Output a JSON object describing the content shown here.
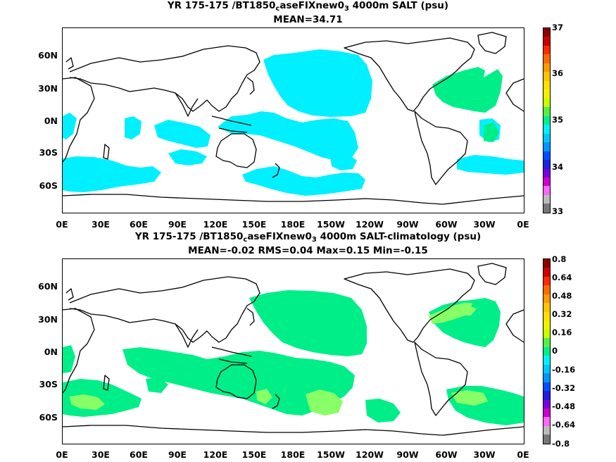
{
  "panels": [
    {
      "id": "absolute",
      "title_main": "YR 175-175 /BT1850",
      "title_sub": "c",
      "title_mid": "aseFIXnew0",
      "title_sub2": "3",
      "title_end": " 4000m SALT (psu)",
      "stats": "MEAN=34.71",
      "colorbar": {
        "labels": [
          "37",
          "36",
          "35",
          "34",
          "33"
        ],
        "colors": [
          "#8b0000",
          "#cc0000",
          "#ff2a00",
          "#ff6a00",
          "#ff9a00",
          "#ffc400",
          "#ffe000",
          "#f0f000",
          "#c8ff00",
          "#55ee44",
          "#00ee88",
          "#00f0ff",
          "#00c8ff",
          "#0096ff",
          "#0050ff",
          "#2020dd",
          "#7a00dd",
          "#cc00cc",
          "#ff66ff",
          "#bbbbbb",
          "#777777"
        ]
      },
      "lat_labels": [
        "60N",
        "30N",
        "0N",
        "30S",
        "60S"
      ],
      "lon_labels": [
        "0E",
        "30E",
        "60E",
        "90E",
        "120E",
        "150E",
        "180E",
        "150W",
        "120W",
        "90W",
        "60W",
        "30W",
        "0E"
      ]
    },
    {
      "id": "anomaly",
      "title_main": "YR 175-175 /BT1850",
      "title_sub": "c",
      "title_mid": "aseFIXnew0",
      "title_sub2": "3",
      "title_end": " 4000m SALT-climatology (psu)",
      "stats": "MEAN=-0.02   RMS=0.04   Max=0.15   Min=-0.15",
      "colorbar": {
        "labels": [
          "0.8",
          "0.64",
          "0.48",
          "0.32",
          "0.16",
          "0",
          "-0.16",
          "-0.32",
          "-0.48",
          "-0.64",
          "-0.8"
        ],
        "colors": [
          "#8b0000",
          "#cc0000",
          "#ff2a00",
          "#ff6a00",
          "#ff9a00",
          "#ffc400",
          "#ffe000",
          "#f0f000",
          "#c8ff00",
          "#55ee44",
          "#00ee88",
          "#00f0ff",
          "#00c8ff",
          "#0096ff",
          "#0050ff",
          "#2020dd",
          "#7a00dd",
          "#cc00cc",
          "#ff66ff",
          "#bbbbbb",
          "#777777"
        ]
      },
      "lat_labels": [
        "60N",
        "30N",
        "0N",
        "30S",
        "60S"
      ],
      "lon_labels": [
        "0E",
        "30E",
        "60E",
        "90E",
        "120E",
        "150E",
        "180E",
        "150W",
        "120W",
        "90W",
        "60W",
        "30W",
        "0E"
      ]
    }
  ],
  "field_colors": {
    "cyan_35": "#00f0ff",
    "green_35": "#00ee88",
    "anom_zero": "#00ee88",
    "anom_pos": "#88ff66"
  }
}
